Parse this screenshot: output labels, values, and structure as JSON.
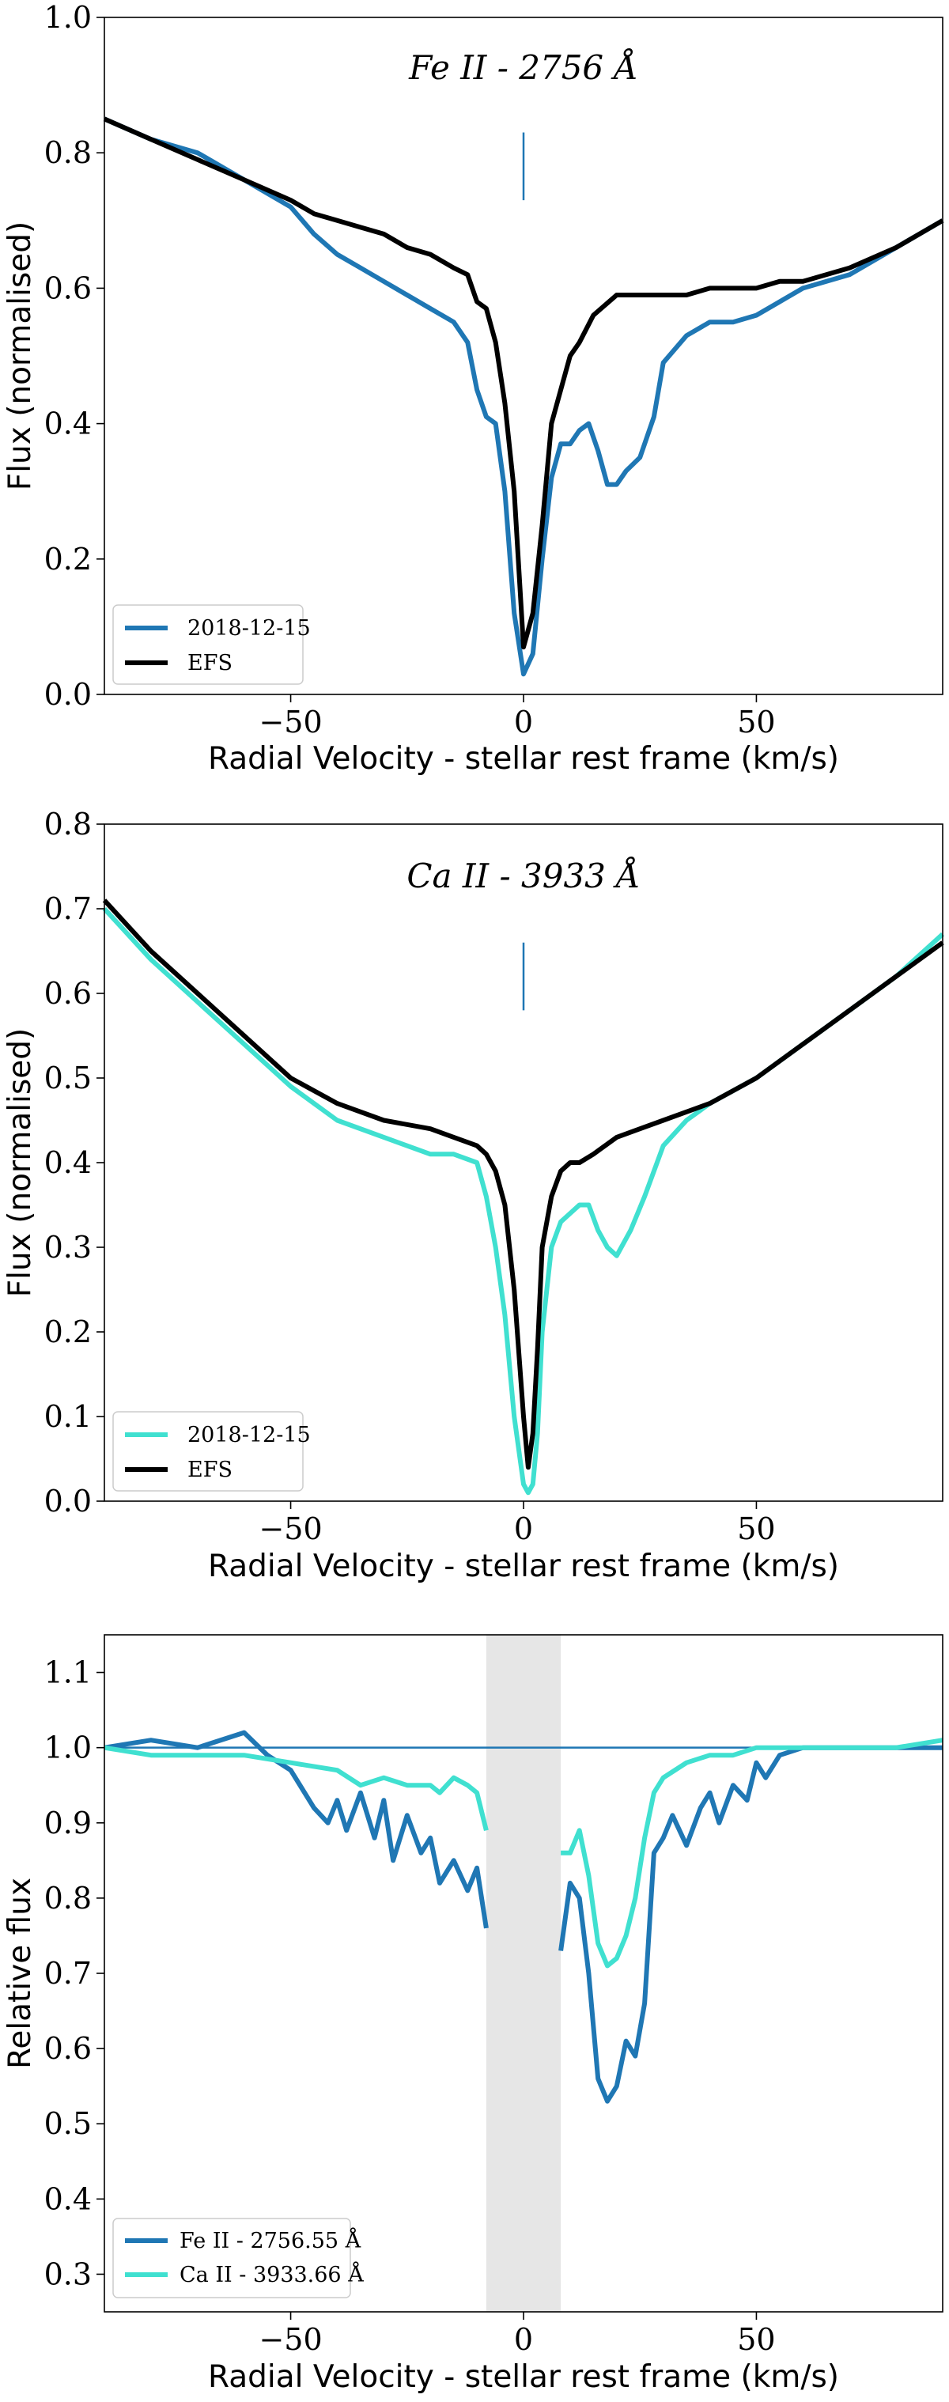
{
  "chart_data": [
    {
      "type": "line",
      "title": "Fe II - 2756 Å",
      "xlabel": "Radial Velocity - stellar rest frame (km/s)",
      "ylabel": "Flux (normalised)",
      "xlim": [
        -90,
        90
      ],
      "ylim": [
        0.0,
        1.0
      ],
      "xticks": [
        -50,
        0,
        50
      ],
      "xtick_labels": [
        "−50",
        "0",
        "50"
      ],
      "yticks": [
        0.0,
        0.2,
        0.4,
        0.6,
        0.8,
        1.0
      ],
      "ytick_labels": [
        "0.0",
        "0.2",
        "0.4",
        "0.6",
        "0.8",
        "1.0"
      ],
      "marker_line": {
        "x": 0,
        "y": [
          0.73,
          0.83
        ],
        "color": "#1f77b4"
      },
      "legend_position": "lower-left",
      "series": [
        {
          "name": "2018-12-15",
          "color": "#1f77b4",
          "x": [
            -90,
            -80,
            -70,
            -60,
            -50,
            -45,
            -40,
            -35,
            -30,
            -25,
            -20,
            -15,
            -12,
            -10,
            -8,
            -6,
            -4,
            -2,
            0,
            2,
            4,
            6,
            8,
            10,
            12,
            14,
            16,
            18,
            20,
            22,
            25,
            28,
            30,
            35,
            40,
            45,
            50,
            55,
            60,
            70,
            80,
            90
          ],
          "values": [
            0.85,
            0.82,
            0.8,
            0.76,
            0.72,
            0.68,
            0.65,
            0.63,
            0.61,
            0.59,
            0.57,
            0.55,
            0.52,
            0.45,
            0.41,
            0.4,
            0.3,
            0.12,
            0.03,
            0.06,
            0.2,
            0.32,
            0.37,
            0.37,
            0.39,
            0.4,
            0.36,
            0.31,
            0.31,
            0.33,
            0.35,
            0.41,
            0.49,
            0.53,
            0.55,
            0.55,
            0.56,
            0.58,
            0.6,
            0.62,
            0.66,
            0.7
          ]
        },
        {
          "name": "EFS",
          "color": "#000000",
          "x": [
            -90,
            -80,
            -70,
            -60,
            -50,
            -45,
            -40,
            -35,
            -30,
            -25,
            -20,
            -15,
            -12,
            -10,
            -8,
            -6,
            -4,
            -2,
            0,
            2,
            4,
            6,
            8,
            10,
            12,
            15,
            20,
            25,
            30,
            35,
            40,
            45,
            50,
            55,
            60,
            70,
            80,
            90
          ],
          "values": [
            0.85,
            0.82,
            0.79,
            0.76,
            0.73,
            0.71,
            0.7,
            0.69,
            0.68,
            0.66,
            0.65,
            0.63,
            0.62,
            0.58,
            0.57,
            0.52,
            0.43,
            0.3,
            0.07,
            0.12,
            0.25,
            0.4,
            0.45,
            0.5,
            0.52,
            0.56,
            0.59,
            0.59,
            0.59,
            0.59,
            0.6,
            0.6,
            0.6,
            0.61,
            0.61,
            0.63,
            0.66,
            0.7
          ]
        }
      ]
    },
    {
      "type": "line",
      "title": "Ca II - 3933 Å",
      "xlabel": "Radial Velocity - stellar rest frame (km/s)",
      "ylabel": "Flux (normalised)",
      "xlim": [
        -90,
        90
      ],
      "ylim": [
        0.0,
        0.8
      ],
      "xticks": [
        -50,
        0,
        50
      ],
      "xtick_labels": [
        "−50",
        "0",
        "50"
      ],
      "yticks": [
        0.0,
        0.1,
        0.2,
        0.3,
        0.4,
        0.5,
        0.6,
        0.7,
        0.8
      ],
      "ytick_labels": [
        "0.0",
        "0.1",
        "0.2",
        "0.3",
        "0.4",
        "0.5",
        "0.6",
        "0.7",
        "0.8"
      ],
      "marker_line": {
        "x": 0,
        "y": [
          0.58,
          0.66
        ],
        "color": "#1f77b4"
      },
      "legend_position": "lower-left",
      "series": [
        {
          "name": "2018-12-15",
          "color": "#40e0d0",
          "x": [
            -90,
            -80,
            -70,
            -60,
            -50,
            -40,
            -30,
            -20,
            -15,
            -10,
            -8,
            -6,
            -4,
            -2,
            0,
            1,
            2,
            3,
            4,
            6,
            8,
            10,
            12,
            14,
            16,
            18,
            20,
            23,
            26,
            30,
            35,
            40,
            50,
            60,
            70,
            80,
            90
          ],
          "values": [
            0.7,
            0.64,
            0.59,
            0.54,
            0.49,
            0.45,
            0.43,
            0.41,
            0.41,
            0.4,
            0.36,
            0.3,
            0.22,
            0.1,
            0.02,
            0.01,
            0.02,
            0.08,
            0.2,
            0.3,
            0.33,
            0.34,
            0.35,
            0.35,
            0.32,
            0.3,
            0.29,
            0.32,
            0.36,
            0.42,
            0.45,
            0.47,
            0.5,
            0.54,
            0.58,
            0.62,
            0.67
          ]
        },
        {
          "name": "EFS",
          "color": "#000000",
          "x": [
            -90,
            -80,
            -70,
            -60,
            -50,
            -40,
            -30,
            -20,
            -15,
            -10,
            -8,
            -6,
            -4,
            -2,
            0,
            1,
            2,
            3,
            4,
            6,
            8,
            10,
            12,
            15,
            20,
            25,
            30,
            40,
            50,
            60,
            70,
            80,
            90
          ],
          "values": [
            0.71,
            0.65,
            0.6,
            0.55,
            0.5,
            0.47,
            0.45,
            0.44,
            0.43,
            0.42,
            0.41,
            0.39,
            0.35,
            0.25,
            0.1,
            0.04,
            0.08,
            0.18,
            0.3,
            0.36,
            0.39,
            0.4,
            0.4,
            0.41,
            0.43,
            0.44,
            0.45,
            0.47,
            0.5,
            0.54,
            0.58,
            0.62,
            0.66
          ]
        }
      ]
    },
    {
      "type": "line",
      "title": "",
      "xlabel": "Radial Velocity - stellar rest frame (km/s)",
      "ylabel": "Relative flux",
      "xlim": [
        -90,
        90
      ],
      "ylim": [
        0.25,
        1.15
      ],
      "xticks": [
        -50,
        0,
        50
      ],
      "xtick_labels": [
        "−50",
        "0",
        "50"
      ],
      "yticks": [
        0.3,
        0.4,
        0.5,
        0.6,
        0.7,
        0.8,
        0.9,
        1.0,
        1.1
      ],
      "ytick_labels": [
        "0.3",
        "0.4",
        "0.5",
        "0.6",
        "0.7",
        "0.8",
        "0.9",
        "1.0",
        "1.1"
      ],
      "shaded_band": {
        "x": [
          -8,
          8
        ],
        "color": "#e6e6e6"
      },
      "reference_line": {
        "y": 1.0,
        "color": "#1f77b4"
      },
      "legend_position": "lower-left",
      "series": [
        {
          "name": "Fe II - 2756.55 Å",
          "color": "#1f77b4",
          "segments": [
            {
              "x": [
                -90,
                -80,
                -70,
                -60,
                -55,
                -50,
                -45,
                -42,
                -40,
                -38,
                -35,
                -32,
                -30,
                -28,
                -25,
                -22,
                -20,
                -18,
                -15,
                -12,
                -10,
                -8
              ],
              "values": [
                1.0,
                1.01,
                1.0,
                1.02,
                0.99,
                0.97,
                0.92,
                0.9,
                0.93,
                0.89,
                0.94,
                0.88,
                0.93,
                0.85,
                0.91,
                0.86,
                0.88,
                0.82,
                0.85,
                0.81,
                0.84,
                0.76
              ]
            },
            {
              "x": [
                8,
                10,
                12,
                14,
                16,
                18,
                20,
                22,
                24,
                26,
                28,
                30,
                32,
                35,
                38,
                40,
                42,
                45,
                48,
                50,
                52,
                55,
                60,
                70,
                80,
                90
              ],
              "values": [
                0.73,
                0.82,
                0.8,
                0.7,
                0.56,
                0.53,
                0.55,
                0.61,
                0.59,
                0.66,
                0.86,
                0.88,
                0.91,
                0.87,
                0.92,
                0.94,
                0.9,
                0.95,
                0.93,
                0.98,
                0.96,
                0.99,
                1.0,
                1.0,
                1.0,
                1.0
              ]
            }
          ]
        },
        {
          "name": "Ca II - 3933.66 Å",
          "color": "#40e0d0",
          "segments": [
            {
              "x": [
                -90,
                -80,
                -70,
                -60,
                -50,
                -40,
                -35,
                -30,
                -25,
                -20,
                -18,
                -15,
                -12,
                -10,
                -8
              ],
              "values": [
                1.0,
                0.99,
                0.99,
                0.99,
                0.98,
                0.97,
                0.95,
                0.96,
                0.95,
                0.95,
                0.94,
                0.96,
                0.95,
                0.94,
                0.89
              ]
            },
            {
              "x": [
                8,
                10,
                12,
                14,
                16,
                18,
                20,
                22,
                24,
                26,
                28,
                30,
                35,
                40,
                45,
                50,
                55,
                60,
                70,
                80,
                90
              ],
              "values": [
                0.86,
                0.86,
                0.89,
                0.83,
                0.74,
                0.71,
                0.72,
                0.75,
                0.8,
                0.88,
                0.94,
                0.96,
                0.98,
                0.99,
                0.99,
                1.0,
                1.0,
                1.0,
                1.0,
                1.0,
                1.01
              ]
            }
          ]
        }
      ]
    }
  ]
}
